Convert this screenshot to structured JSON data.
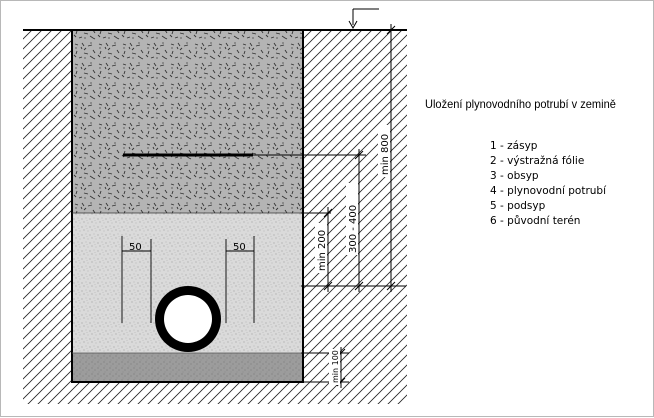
{
  "diagram": {
    "title": "Uložení plynovodního potrubí v zemině",
    "legend": [
      {
        "number": "1",
        "label": "zásyp"
      },
      {
        "number": "2",
        "label": "výstražná fólie"
      },
      {
        "number": "3",
        "label": "obsyp"
      },
      {
        "number": "4",
        "label": "plynovodní potrubí"
      },
      {
        "number": "5",
        "label": "podsyp"
      },
      {
        "number": "6",
        "label": "původní terén"
      }
    ],
    "dimensions": {
      "pipe_side_left": "50",
      "pipe_side_right": "50",
      "min_above_pipe": "min 200",
      "foil_depth": "300 - 400",
      "min_cover": "min 800",
      "min_bedding": "min 100"
    },
    "colors": {
      "backfill": "#aeaeae",
      "embedment": "#d6d6d6",
      "bedding": "#999999",
      "pipe": "#000000",
      "lines": "#000000"
    }
  }
}
